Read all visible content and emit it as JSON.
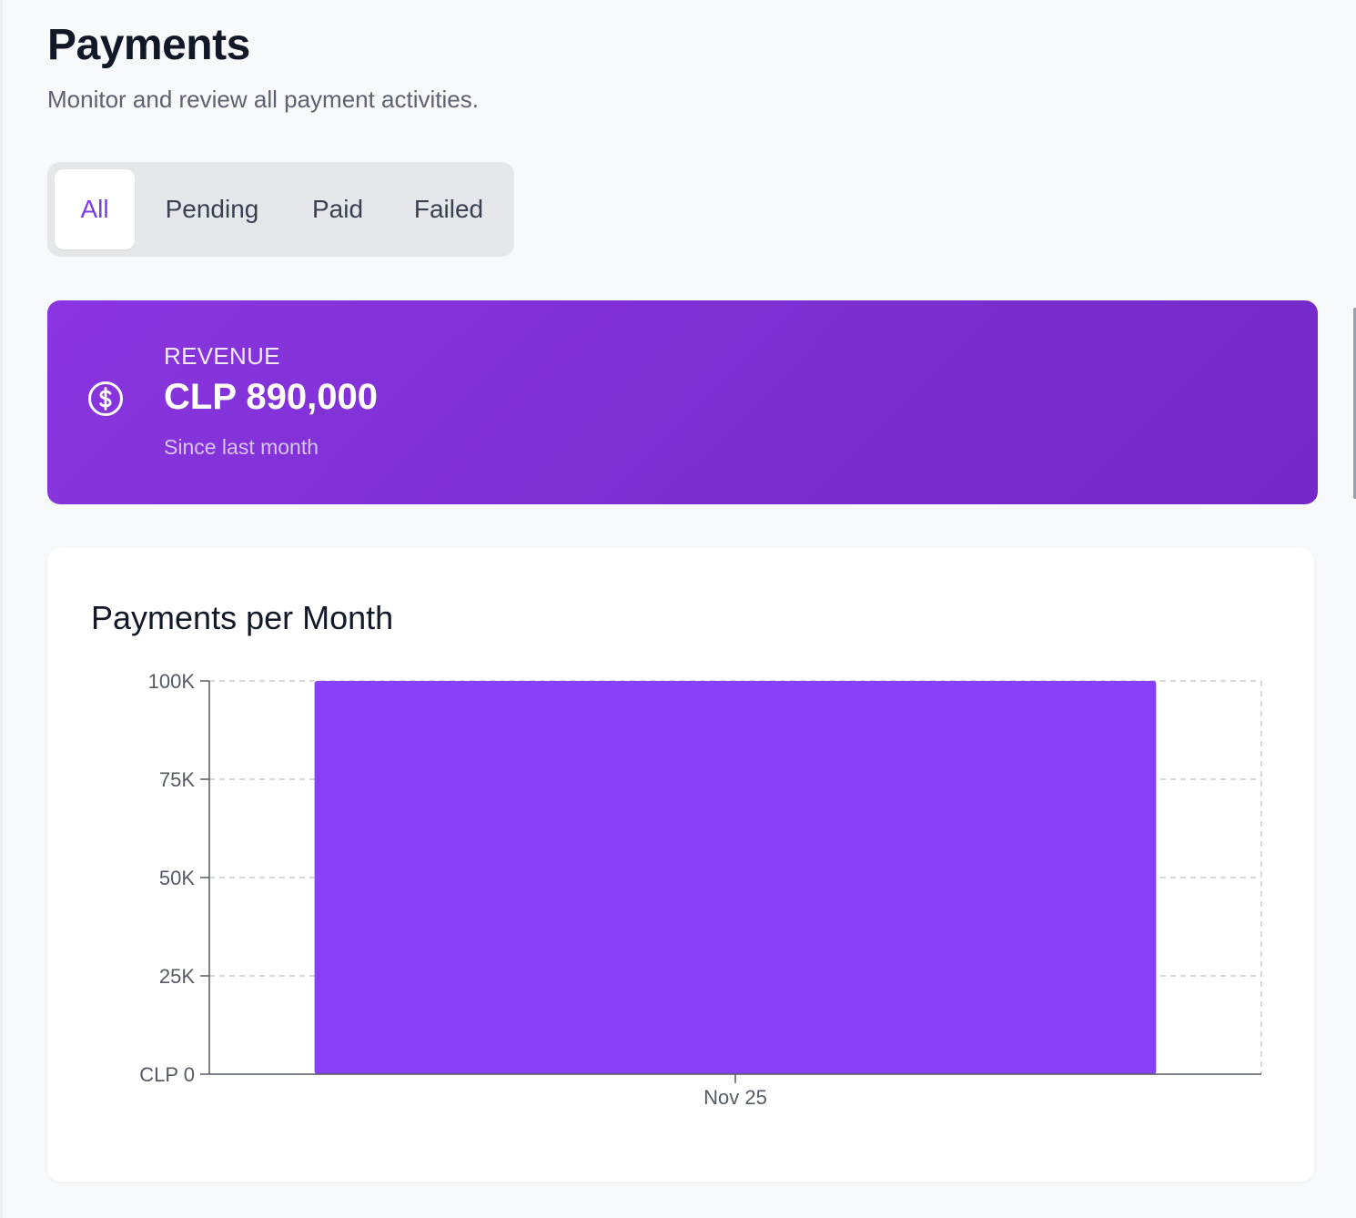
{
  "header": {
    "title": "Payments",
    "subtitle": "Monitor and review all payment activities."
  },
  "tabs": [
    {
      "label": "All",
      "active": true
    },
    {
      "label": "Pending",
      "active": false
    },
    {
      "label": "Paid",
      "active": false
    },
    {
      "label": "Failed",
      "active": false
    }
  ],
  "revenue": {
    "label": "REVENUE",
    "value": "CLP 890,000",
    "note": "Since last month",
    "icon": "dollar-circle-icon"
  },
  "colors": {
    "accent": "#7c3aed",
    "card_gradient_start": "#8a35e0",
    "card_gradient_end": "#7428c9",
    "bar": "#8840f8"
  },
  "chart_data": {
    "type": "bar",
    "title": "Payments per Month",
    "categories": [
      "Nov 25"
    ],
    "values": [
      100000
    ],
    "ylim": [
      0,
      100000
    ],
    "yticks": [
      0,
      25000,
      50000,
      75000,
      100000
    ],
    "ytick_labels": [
      "CLP 0",
      "25K",
      "50K",
      "75K",
      "100K"
    ],
    "xlabel": "",
    "ylabel": "",
    "grid": true
  }
}
